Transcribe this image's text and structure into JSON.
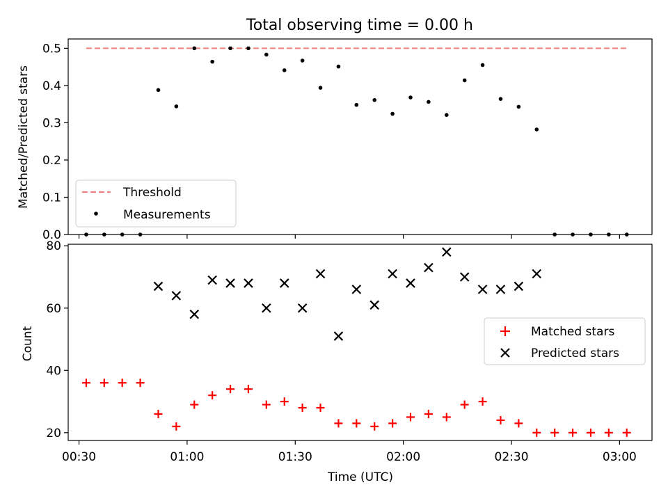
{
  "figure": {
    "title": "Total observing time = 0.00 h"
  },
  "chart_data": [
    {
      "type": "scatter",
      "panel": "top",
      "title": "Total observing time = 0.00 h",
      "xlabel": "",
      "ylabel": "Matched/Predicted stars",
      "ylim": [
        0,
        0.525
      ],
      "yticks": [
        0.0,
        0.1,
        0.2,
        0.3,
        0.4,
        0.5
      ],
      "ytick_labels": [
        "0.0",
        "0.1",
        "0.2",
        "0.3",
        "0.4",
        "0.5"
      ],
      "legend_position": "lower-left",
      "threshold": {
        "name": "Threshold",
        "value": 0.5,
        "x_range": [
          "00:32",
          "03:02"
        ],
        "color": "#f08080",
        "style": "dashed"
      },
      "series": [
        {
          "name": "Measurements",
          "marker": "dot",
          "color": "#000000",
          "x": [
            "00:32",
            "00:37",
            "00:42",
            "00:47",
            "00:52",
            "00:57",
            "01:02",
            "01:07",
            "01:12",
            "01:17",
            "01:22",
            "01:27",
            "01:32",
            "01:37",
            "01:42",
            "01:47",
            "01:52",
            "01:57",
            "02:02",
            "02:07",
            "02:12",
            "02:17",
            "02:22",
            "02:27",
            "02:32",
            "02:37",
            "02:42",
            "02:47",
            "02:52",
            "02:57",
            "03:02"
          ],
          "y": [
            0,
            0,
            0,
            0,
            0.388,
            0.344,
            0.5,
            0.464,
            0.5,
            0.5,
            0.483,
            0.441,
            0.467,
            0.394,
            0.451,
            0.348,
            0.361,
            0.324,
            0.368,
            0.356,
            0.321,
            0.414,
            0.455,
            0.364,
            0.343,
            0.282,
            0,
            0,
            0,
            0,
            0
          ]
        }
      ]
    },
    {
      "type": "scatter",
      "panel": "bottom",
      "xlabel": "Time (UTC)",
      "ylabel": "Count",
      "xlim": [
        "00:27",
        "03:09"
      ],
      "ylim": [
        17.5,
        80.5
      ],
      "yticks": [
        20,
        40,
        60,
        80
      ],
      "ytick_labels": [
        "20",
        "40",
        "60",
        "80"
      ],
      "xticks": [
        "00:30",
        "01:00",
        "01:30",
        "02:00",
        "02:30",
        "03:00"
      ],
      "xtick_labels": [
        "00:30",
        "01:00",
        "01:30",
        "02:00",
        "02:30",
        "03:00"
      ],
      "legend_position": "center-right",
      "series": [
        {
          "name": "Matched stars",
          "marker": "plus",
          "color": "#ff0000",
          "x": [
            "00:32",
            "00:37",
            "00:42",
            "00:47",
            "00:52",
            "00:57",
            "01:02",
            "01:07",
            "01:12",
            "01:17",
            "01:22",
            "01:27",
            "01:32",
            "01:37",
            "01:42",
            "01:47",
            "01:52",
            "01:57",
            "02:02",
            "02:07",
            "02:12",
            "02:17",
            "02:22",
            "02:27",
            "02:32",
            "02:37",
            "02:42",
            "02:47",
            "02:52",
            "02:57",
            "03:02"
          ],
          "y": [
            36,
            36,
            36,
            36,
            26,
            22,
            29,
            32,
            34,
            34,
            29,
            30,
            28,
            28,
            23,
            23,
            22,
            23,
            25,
            26,
            25,
            29,
            30,
            24,
            23,
            20,
            20,
            20,
            20,
            20,
            20
          ]
        },
        {
          "name": "Predicted stars",
          "marker": "x",
          "color": "#000000",
          "x": [
            "00:52",
            "00:57",
            "01:02",
            "01:07",
            "01:12",
            "01:17",
            "01:22",
            "01:27",
            "01:32",
            "01:37",
            "01:42",
            "01:47",
            "01:52",
            "01:57",
            "02:02",
            "02:07",
            "02:12",
            "02:17",
            "02:22",
            "02:27",
            "02:32",
            "02:37"
          ],
          "y": [
            67,
            64,
            58,
            69,
            68,
            68,
            60,
            68,
            60,
            71,
            51,
            66,
            61,
            71,
            68,
            73,
            78,
            70,
            66,
            66,
            67,
            71
          ]
        }
      ]
    }
  ]
}
